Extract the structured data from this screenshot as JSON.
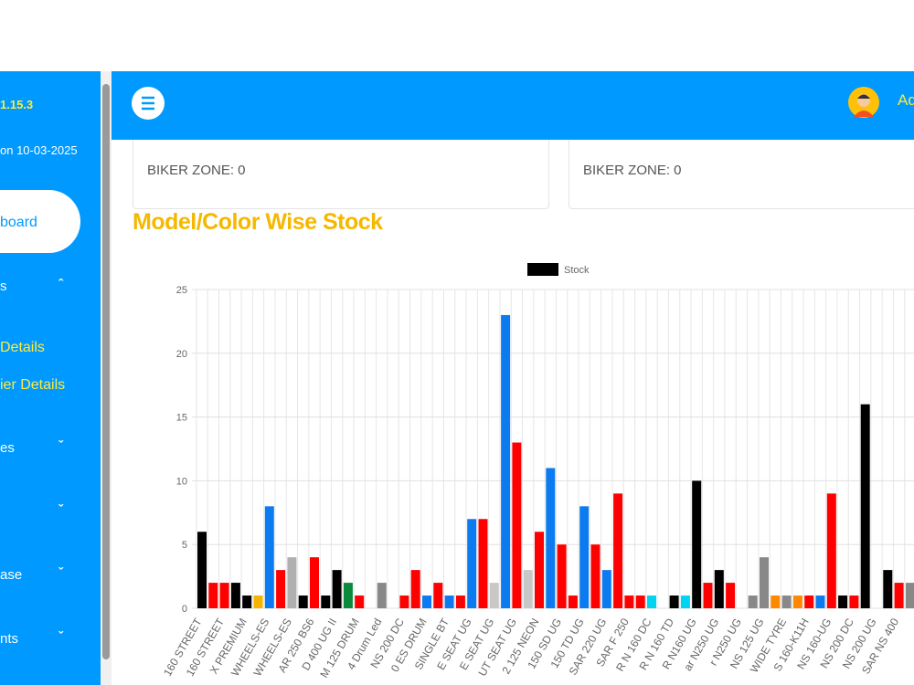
{
  "sidebar": {
    "version": "1.15.3",
    "updated": "on 10-03-2025",
    "items": [
      "board",
      "s",
      "Details",
      "ier Details",
      "es",
      "ase",
      "nts"
    ]
  },
  "header": {
    "user": "Ad"
  },
  "cards": [
    "BIKER ZONE: 0",
    "BIKER ZONE: 0"
  ],
  "section_title": "Model/Color Wise Stock",
  "chart_data": {
    "type": "bar",
    "categories": [
      "160 STREET",
      null,
      "160 STREET",
      null,
      "X PREMIUM",
      null,
      "WHEELS-ES",
      null,
      "WHEELS-ES",
      null,
      "AR 250 BS6",
      null,
      "D 400 UG II",
      null,
      "M 125 DRUM",
      null,
      "4 Drum Led",
      null,
      "NS 200 DC",
      null,
      "0 ES DRUM",
      null,
      "SINGLE BT",
      null,
      "E SEAT UG",
      null,
      "E SEAT UG",
      null,
      "UT SEAT UG",
      null,
      "2 125 NEON",
      null,
      "150 SD UG",
      null,
      "150 TD UG",
      null,
      "SAR 220 UG",
      null,
      "SAR F 250",
      null,
      "R N 160 DC",
      null,
      "R N 160 TD",
      null,
      "R N160 UG",
      null,
      "ar N250 UG",
      null,
      "r N250 UG",
      null,
      "NS 125 UG",
      null,
      "WIDE TYRE",
      null,
      "S 160-K11H",
      null,
      "NS 160-UG",
      null,
      "NS 200 DC",
      null,
      "NS 200 UG",
      null,
      "SAR NS 400",
      null
    ],
    "series": [
      {
        "name": "Stock",
        "color": "#000000",
        "values": [
          6,
          2,
          2,
          2,
          1,
          1,
          8,
          3,
          4,
          1,
          4,
          1,
          3,
          2,
          1,
          0,
          2,
          0,
          1,
          3,
          1,
          2,
          1,
          1,
          7,
          7,
          2,
          23,
          13,
          3,
          6,
          11,
          5,
          1,
          8,
          5,
          3,
          9,
          1,
          1,
          1,
          0,
          1,
          1,
          10,
          2,
          3,
          2,
          0,
          1,
          4,
          1,
          1,
          1,
          1,
          1,
          9,
          1,
          1,
          16,
          0,
          3,
          2,
          2
        ],
        "colors": [
          "#000000",
          "#ff0000",
          "#ff0000",
          "#000000",
          "#000000",
          "#f5b400",
          "#0d7bf0",
          "#ff0000",
          "#b0b0b0",
          "#000000",
          "#ff0000",
          "#000000",
          "#000000",
          "#0a8a3a",
          "#ff0000",
          "#000000",
          "#888888",
          "#000000",
          "#ff0000",
          "#ff0000",
          "#0d7bf0",
          "#ff0000",
          "#0d7bf0",
          "#ff0000",
          "#0d7bf0",
          "#ff0000",
          "#c8c8c8",
          "#0d7bf0",
          "#ff0000",
          "#c8c8c8",
          "#ff0000",
          "#0d7bf0",
          "#ff0000",
          "#ff0000",
          "#0d7bf0",
          "#ff0000",
          "#0d7bf0",
          "#ff0000",
          "#ff0000",
          "#ff0000",
          "#00d4f0",
          "#000000",
          "#000000",
          "#00d4f0",
          "#000000",
          "#ff0000",
          "#000000",
          "#ff0000",
          "#000000",
          "#888888",
          "#888888",
          "#ff8800",
          "#888888",
          "#ff8800",
          "#ff0000",
          "#0d7bf0",
          "#ff0000",
          "#000000",
          "#ff0000",
          "#000000",
          "#000000",
          "#000000",
          "#ff0000",
          "#888888"
        ]
      }
    ],
    "ylim": [
      0,
      25
    ],
    "yticks": [
      0,
      5,
      10,
      15,
      20,
      25
    ],
    "grid": true,
    "legend": "top"
  }
}
